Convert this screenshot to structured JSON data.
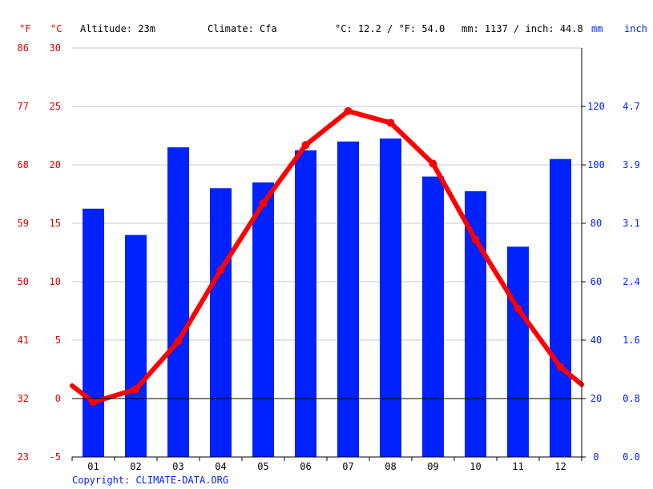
{
  "header": {
    "unit_f": "°F",
    "unit_c": "°C",
    "altitude": "Altitude: 23m",
    "climate": "Climate: Cfa",
    "averages": "°C: 12.2 / °F: 54.0",
    "precip_total": "mm: 1137 / inch: 44.8",
    "unit_mm": "mm",
    "unit_inch": "inch"
  },
  "copyright": "Copyright: CLIMATE-DATA.ORG",
  "colors": {
    "temperature": "#ff0000",
    "precipitation": "#0022ff",
    "grid": "#c8c8c8",
    "zero_line": "#000000"
  },
  "chart_data": {
    "type": "bar",
    "categories": [
      "01",
      "02",
      "03",
      "04",
      "05",
      "06",
      "07",
      "08",
      "09",
      "10",
      "11",
      "12"
    ],
    "series": [
      {
        "name": "Precipitation (mm)",
        "type": "bar",
        "axis": "right",
        "values": [
          85,
          76,
          106,
          92,
          94,
          105,
          108,
          109,
          96,
          91,
          72,
          102
        ]
      },
      {
        "name": "Temperature (°C)",
        "type": "line",
        "axis": "left",
        "values": [
          -0.3,
          0.8,
          4.9,
          11.0,
          16.7,
          21.7,
          24.6,
          23.6,
          20.1,
          13.6,
          7.7,
          2.7
        ]
      }
    ],
    "line_ends": {
      "start": 1.1,
      "end": 1.2
    },
    "ylim_celsius": [
      -5,
      30
    ],
    "yticks_celsius": [
      "-5",
      "0",
      "5",
      "10",
      "15",
      "20",
      "25",
      "30"
    ],
    "yticks_fahrenheit": [
      "23",
      "32",
      "41",
      "50",
      "59",
      "68",
      "77",
      "86"
    ],
    "ylim_mm": [
      0,
      140
    ],
    "yticks_mm": [
      "0",
      "20",
      "40",
      "60",
      "80",
      "100",
      "120"
    ],
    "yticks_inch": [
      "0.0",
      "0.8",
      "1.6",
      "2.4",
      "3.1",
      "3.9",
      "4.7"
    ],
    "grid": true
  }
}
